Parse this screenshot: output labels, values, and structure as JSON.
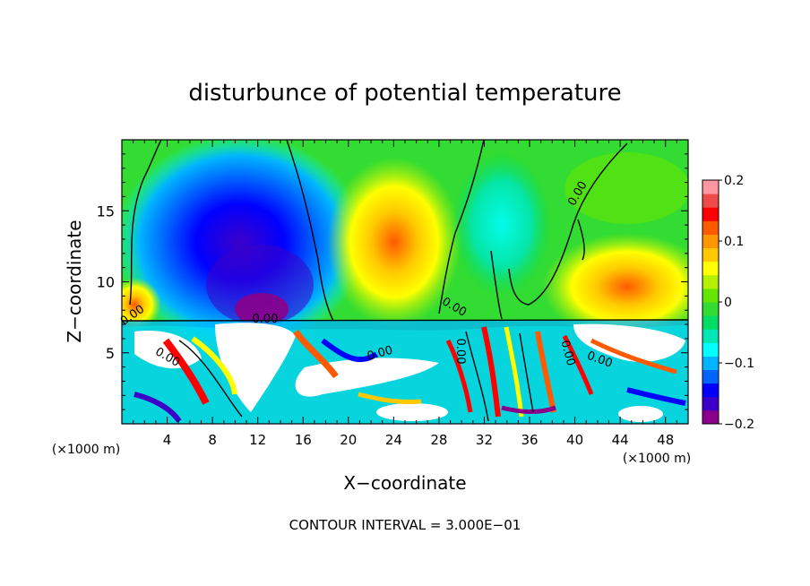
{
  "chart_data": {
    "type": "heatmap",
    "title": "disturbunce of potential temperature",
    "xlabel": "X−coordinate",
    "ylabel": "Z−coordinate",
    "x_unit_left": "(×1000 m)",
    "x_unit_right": "(×1000 m)",
    "xlim": [
      0,
      50
    ],
    "ylim": [
      0,
      20
    ],
    "x_ticks": [
      4,
      8,
      12,
      16,
      20,
      24,
      28,
      32,
      36,
      40,
      44,
      48
    ],
    "y_ticks": [
      5,
      10,
      15
    ],
    "colorbar": {
      "min": -0.2,
      "max": 0.2,
      "ticks": [
        0.2,
        0.1,
        0,
        -0.1,
        -0.2
      ],
      "tick_labels": [
        "0.2",
        "0.1",
        "0",
        "−0.1",
        "−0.2"
      ],
      "colors": [
        "#8b008b",
        "#3c00c8",
        "#0000ff",
        "#0064ff",
        "#00b4ff",
        "#00ffff",
        "#00e6b4",
        "#00dc64",
        "#32dc32",
        "#64e600",
        "#b4f000",
        "#ffff00",
        "#ffc800",
        "#ff9600",
        "#ff5a00",
        "#ff0000",
        "#f04b4b",
        "#ff96a0"
      ]
    },
    "contour_labels": [
      "0.00",
      "0.00",
      "0.00",
      "0.00",
      "0.00",
      "0.00",
      "0.00",
      "0.00",
      "0.00"
    ],
    "contour_interval_text": "CONTOUR INTERVAL = 3.000E−01",
    "grid": false
  }
}
